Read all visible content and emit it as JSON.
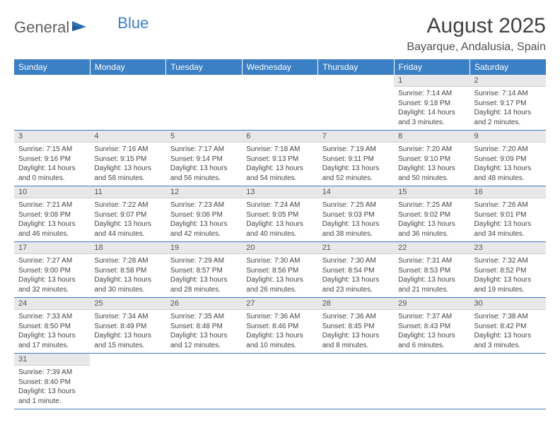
{
  "logo": {
    "text1": "General",
    "text2": "Blue"
  },
  "title": "August 2025",
  "location": "Bayarque, Andalusia, Spain",
  "colors": {
    "header_bg": "#3b7fc4",
    "header_text": "#ffffff",
    "daynum_bg": "#e8e8e8",
    "border": "#3b7fc4",
    "body_text": "#454545"
  },
  "days_of_week": [
    "Sunday",
    "Monday",
    "Tuesday",
    "Wednesday",
    "Thursday",
    "Friday",
    "Saturday"
  ],
  "weeks": [
    [
      null,
      null,
      null,
      null,
      null,
      {
        "n": "1",
        "sr": "Sunrise: 7:14 AM",
        "ss": "Sunset: 9:18 PM",
        "d1": "Daylight: 14 hours",
        "d2": "and 3 minutes."
      },
      {
        "n": "2",
        "sr": "Sunrise: 7:14 AM",
        "ss": "Sunset: 9:17 PM",
        "d1": "Daylight: 14 hours",
        "d2": "and 2 minutes."
      }
    ],
    [
      {
        "n": "3",
        "sr": "Sunrise: 7:15 AM",
        "ss": "Sunset: 9:16 PM",
        "d1": "Daylight: 14 hours",
        "d2": "and 0 minutes."
      },
      {
        "n": "4",
        "sr": "Sunrise: 7:16 AM",
        "ss": "Sunset: 9:15 PM",
        "d1": "Daylight: 13 hours",
        "d2": "and 58 minutes."
      },
      {
        "n": "5",
        "sr": "Sunrise: 7:17 AM",
        "ss": "Sunset: 9:14 PM",
        "d1": "Daylight: 13 hours",
        "d2": "and 56 minutes."
      },
      {
        "n": "6",
        "sr": "Sunrise: 7:18 AM",
        "ss": "Sunset: 9:13 PM",
        "d1": "Daylight: 13 hours",
        "d2": "and 54 minutes."
      },
      {
        "n": "7",
        "sr": "Sunrise: 7:19 AM",
        "ss": "Sunset: 9:11 PM",
        "d1": "Daylight: 13 hours",
        "d2": "and 52 minutes."
      },
      {
        "n": "8",
        "sr": "Sunrise: 7:20 AM",
        "ss": "Sunset: 9:10 PM",
        "d1": "Daylight: 13 hours",
        "d2": "and 50 minutes."
      },
      {
        "n": "9",
        "sr": "Sunrise: 7:20 AM",
        "ss": "Sunset: 9:09 PM",
        "d1": "Daylight: 13 hours",
        "d2": "and 48 minutes."
      }
    ],
    [
      {
        "n": "10",
        "sr": "Sunrise: 7:21 AM",
        "ss": "Sunset: 9:08 PM",
        "d1": "Daylight: 13 hours",
        "d2": "and 46 minutes."
      },
      {
        "n": "11",
        "sr": "Sunrise: 7:22 AM",
        "ss": "Sunset: 9:07 PM",
        "d1": "Daylight: 13 hours",
        "d2": "and 44 minutes."
      },
      {
        "n": "12",
        "sr": "Sunrise: 7:23 AM",
        "ss": "Sunset: 9:06 PM",
        "d1": "Daylight: 13 hours",
        "d2": "and 42 minutes."
      },
      {
        "n": "13",
        "sr": "Sunrise: 7:24 AM",
        "ss": "Sunset: 9:05 PM",
        "d1": "Daylight: 13 hours",
        "d2": "and 40 minutes."
      },
      {
        "n": "14",
        "sr": "Sunrise: 7:25 AM",
        "ss": "Sunset: 9:03 PM",
        "d1": "Daylight: 13 hours",
        "d2": "and 38 minutes."
      },
      {
        "n": "15",
        "sr": "Sunrise: 7:25 AM",
        "ss": "Sunset: 9:02 PM",
        "d1": "Daylight: 13 hours",
        "d2": "and 36 minutes."
      },
      {
        "n": "16",
        "sr": "Sunrise: 7:26 AM",
        "ss": "Sunset: 9:01 PM",
        "d1": "Daylight: 13 hours",
        "d2": "and 34 minutes."
      }
    ],
    [
      {
        "n": "17",
        "sr": "Sunrise: 7:27 AM",
        "ss": "Sunset: 9:00 PM",
        "d1": "Daylight: 13 hours",
        "d2": "and 32 minutes."
      },
      {
        "n": "18",
        "sr": "Sunrise: 7:28 AM",
        "ss": "Sunset: 8:58 PM",
        "d1": "Daylight: 13 hours",
        "d2": "and 30 minutes."
      },
      {
        "n": "19",
        "sr": "Sunrise: 7:29 AM",
        "ss": "Sunset: 8:57 PM",
        "d1": "Daylight: 13 hours",
        "d2": "and 28 minutes."
      },
      {
        "n": "20",
        "sr": "Sunrise: 7:30 AM",
        "ss": "Sunset: 8:56 PM",
        "d1": "Daylight: 13 hours",
        "d2": "and 26 minutes."
      },
      {
        "n": "21",
        "sr": "Sunrise: 7:30 AM",
        "ss": "Sunset: 8:54 PM",
        "d1": "Daylight: 13 hours",
        "d2": "and 23 minutes."
      },
      {
        "n": "22",
        "sr": "Sunrise: 7:31 AM",
        "ss": "Sunset: 8:53 PM",
        "d1": "Daylight: 13 hours",
        "d2": "and 21 minutes."
      },
      {
        "n": "23",
        "sr": "Sunrise: 7:32 AM",
        "ss": "Sunset: 8:52 PM",
        "d1": "Daylight: 13 hours",
        "d2": "and 19 minutes."
      }
    ],
    [
      {
        "n": "24",
        "sr": "Sunrise: 7:33 AM",
        "ss": "Sunset: 8:50 PM",
        "d1": "Daylight: 13 hours",
        "d2": "and 17 minutes."
      },
      {
        "n": "25",
        "sr": "Sunrise: 7:34 AM",
        "ss": "Sunset: 8:49 PM",
        "d1": "Daylight: 13 hours",
        "d2": "and 15 minutes."
      },
      {
        "n": "26",
        "sr": "Sunrise: 7:35 AM",
        "ss": "Sunset: 8:48 PM",
        "d1": "Daylight: 13 hours",
        "d2": "and 12 minutes."
      },
      {
        "n": "27",
        "sr": "Sunrise: 7:36 AM",
        "ss": "Sunset: 8:46 PM",
        "d1": "Daylight: 13 hours",
        "d2": "and 10 minutes."
      },
      {
        "n": "28",
        "sr": "Sunrise: 7:36 AM",
        "ss": "Sunset: 8:45 PM",
        "d1": "Daylight: 13 hours",
        "d2": "and 8 minutes."
      },
      {
        "n": "29",
        "sr": "Sunrise: 7:37 AM",
        "ss": "Sunset: 8:43 PM",
        "d1": "Daylight: 13 hours",
        "d2": "and 6 minutes."
      },
      {
        "n": "30",
        "sr": "Sunrise: 7:38 AM",
        "ss": "Sunset: 8:42 PM",
        "d1": "Daylight: 13 hours",
        "d2": "and 3 minutes."
      }
    ],
    [
      {
        "n": "31",
        "sr": "Sunrise: 7:39 AM",
        "ss": "Sunset: 8:40 PM",
        "d1": "Daylight: 13 hours",
        "d2": "and 1 minute."
      },
      null,
      null,
      null,
      null,
      null,
      null
    ]
  ]
}
